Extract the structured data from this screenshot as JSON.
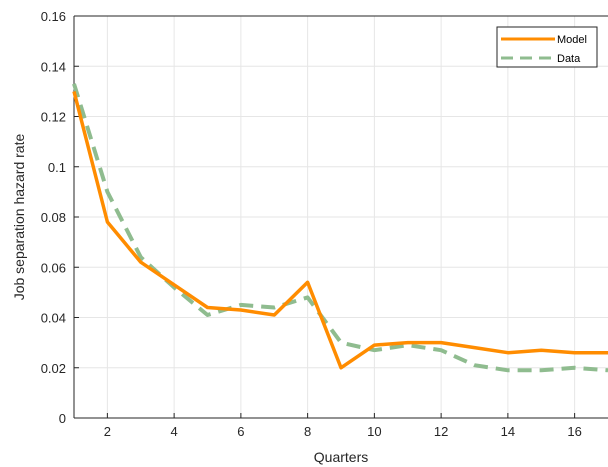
{
  "chart_data": {
    "type": "line",
    "title": "",
    "xlabel": "Quarters",
    "ylabel": "Job separation hazard rate",
    "xlim": [
      1,
      17
    ],
    "ylim": [
      0,
      0.16
    ],
    "x_ticks": [
      2,
      4,
      6,
      8,
      10,
      12,
      14,
      16
    ],
    "x_tick_labels": [
      "2",
      "4",
      "6",
      "8",
      "10",
      "12",
      "14",
      "16"
    ],
    "y_ticks": [
      0,
      0.02,
      0.04,
      0.06,
      0.08,
      0.1,
      0.12,
      0.14,
      0.16
    ],
    "y_tick_labels": [
      "0",
      "0.02",
      "0.04",
      "0.06",
      "0.08",
      "0.1",
      "0.12",
      "0.14",
      "0.16"
    ],
    "grid": true,
    "legend_position": "top-right",
    "x": [
      1,
      2,
      3,
      4,
      5,
      6,
      7,
      8,
      9,
      10,
      11,
      12,
      13,
      14,
      15,
      16,
      17
    ],
    "series": [
      {
        "name": "Model",
        "color": "#ff8c00",
        "style": "solid",
        "values": [
          0.13,
          0.078,
          0.062,
          0.053,
          0.044,
          0.043,
          0.041,
          0.054,
          0.02,
          0.029,
          0.03,
          0.03,
          0.028,
          0.026,
          0.027,
          0.026,
          0.026
        ]
      },
      {
        "name": "Data",
        "color": "#8fbc8f",
        "style": "dashed",
        "values": [
          0.133,
          0.09,
          0.064,
          0.052,
          0.041,
          0.045,
          0.044,
          0.048,
          0.03,
          0.027,
          0.029,
          0.027,
          0.021,
          0.019,
          0.019,
          0.02,
          0.019
        ]
      }
    ]
  }
}
